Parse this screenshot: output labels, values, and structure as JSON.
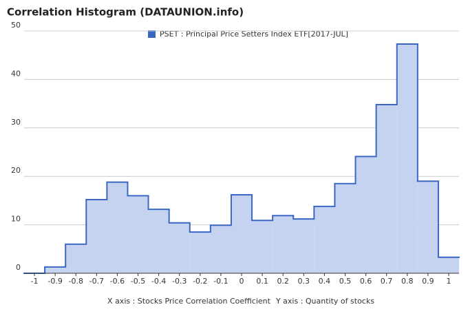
{
  "chart_data": {
    "type": "step",
    "title": "Correlation Histogram (DATAUNION.info)",
    "legend": "PSET : Principal Price Setters Index ETF[2017-JUL]",
    "x_label": "X axis : Stocks Price Correlation Coefficient",
    "y_label": "Y axis : Quantity of stocks",
    "x": [
      -1,
      -0.9,
      -0.8,
      -0.7,
      -0.6,
      -0.5,
      -0.4,
      -0.3,
      -0.2,
      -0.1,
      0,
      0.1,
      0.2,
      0.3,
      0.4,
      0.5,
      0.6,
      0.7,
      0.8,
      0.9,
      1
    ],
    "values": [
      0,
      1.3,
      6.0,
      15.2,
      18.8,
      16.0,
      13.2,
      10.4,
      8.5,
      9.9,
      16.2,
      10.9,
      11.9,
      11.2,
      13.8,
      18.5,
      24.1,
      34.8,
      47.3,
      19.0,
      3.3
    ],
    "color": "#3a66c4",
    "fill": "#c5d3f0",
    "xlim": [
      -1.05,
      1.05
    ],
    "xticks": [
      -1,
      -0.9,
      -0.8,
      -0.7,
      -0.6,
      -0.5,
      -0.4,
      -0.3,
      -0.2,
      -0.1,
      0,
      0.1,
      0.2,
      0.3,
      0.4,
      0.5,
      0.6,
      0.7,
      0.8,
      0.9,
      1
    ],
    "ylim": [
      0,
      50
    ],
    "yticks": [
      0,
      10,
      20,
      30,
      40,
      50
    ],
    "grid": true
  }
}
